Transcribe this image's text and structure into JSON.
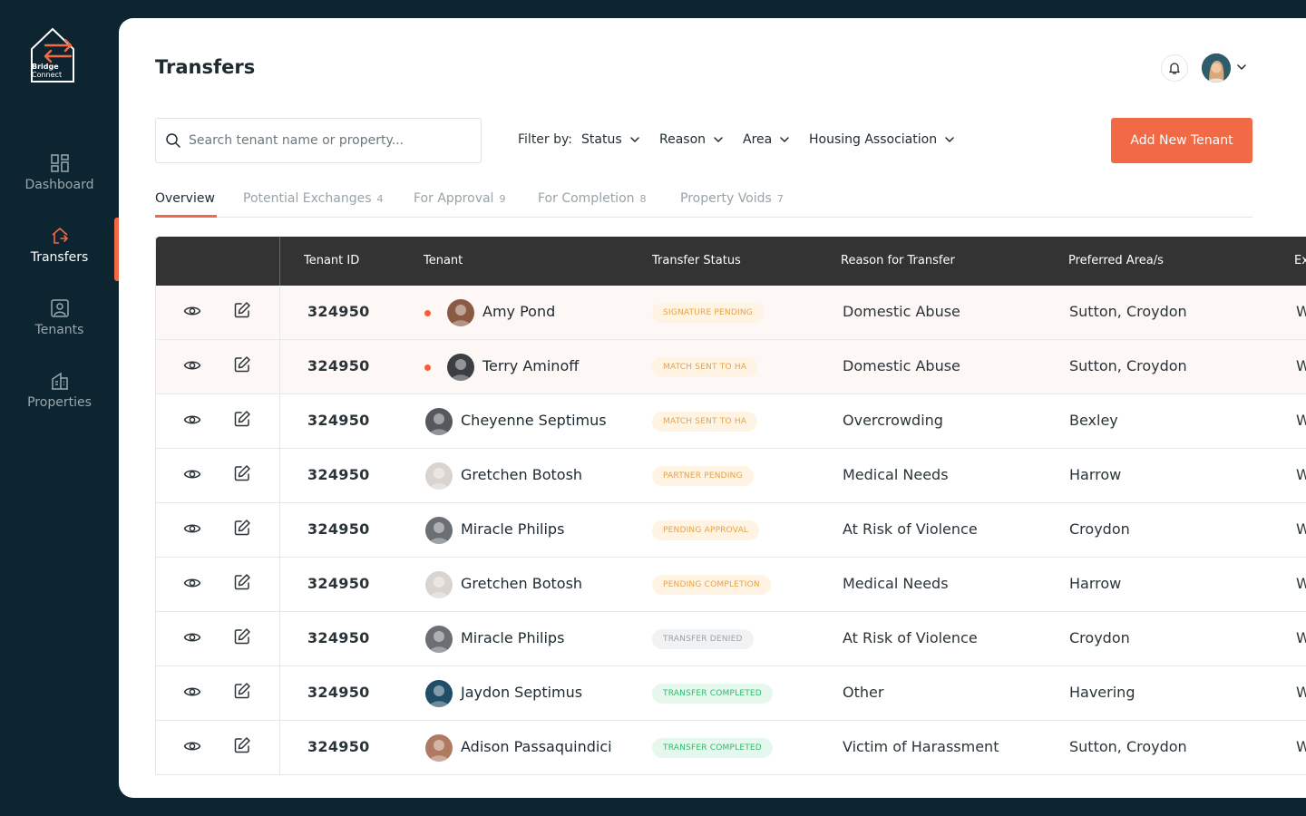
{
  "brand": {
    "line1": "Bridge",
    "line2": "Connect",
    "accent": "#f26a45"
  },
  "sidebar": {
    "items": [
      {
        "label": "Dashboard",
        "icon": "dashboard-icon",
        "active": false
      },
      {
        "label": "Transfers",
        "icon": "transfer-home-icon",
        "active": true
      },
      {
        "label": "Tenants",
        "icon": "user-badge-icon",
        "active": false
      },
      {
        "label": "Properties",
        "icon": "building-icon",
        "active": false
      }
    ]
  },
  "header": {
    "title": "Transfers"
  },
  "search": {
    "placeholder": "Search tenant name or property..."
  },
  "filters": {
    "label": "Filter by:",
    "items": [
      "Status",
      "Reason",
      "Area",
      "Housing Association"
    ]
  },
  "add_button": "Add New Tenant",
  "tabs": [
    {
      "label": "Overview",
      "count": ""
    },
    {
      "label": "Potential Exchanges",
      "count": "4"
    },
    {
      "label": "For Approval",
      "count": "9"
    },
    {
      "label": "For Completion",
      "count": "8"
    },
    {
      "label": "Property Voids",
      "count": "7"
    }
  ],
  "table": {
    "columns": [
      "Tenant ID",
      "Tenant",
      "Transfer Status",
      "Reason for Transfer",
      "Preferred Area/s",
      "Ex"
    ],
    "rows": [
      {
        "id": "324950",
        "name": "Amy Pond",
        "status": "SIGNATURE PENDING",
        "status_kind": "amber",
        "reason": "Domestic Abuse",
        "area": "Sutton, Croydon",
        "extra": "W",
        "flag": true,
        "avatar": "#8a5a44"
      },
      {
        "id": "324950",
        "name": "Terry Aminoff",
        "status": "MATCH SENT TO HA",
        "status_kind": "amber",
        "reason": "Domestic Abuse",
        "area": "Sutton, Croydon",
        "extra": "W",
        "flag": true,
        "avatar": "#3b3f44"
      },
      {
        "id": "324950",
        "name": "Cheyenne Septimus",
        "status": "MATCH SENT TO HA",
        "status_kind": "amber",
        "reason": "Overcrowding",
        "area": "Bexley",
        "extra": "W",
        "flag": false,
        "avatar": "#55585c"
      },
      {
        "id": "324950",
        "name": "Gretchen Botosh",
        "status": "PARTNER PENDING",
        "status_kind": "amber",
        "reason": "Medical Needs",
        "area": "Harrow",
        "extra": "W",
        "flag": false,
        "avatar": "#d9d4d0"
      },
      {
        "id": "324950",
        "name": "Miracle Philips",
        "status": "PENDING APPROVAL",
        "status_kind": "amber",
        "reason": "At Risk of Violence",
        "area": "Croydon",
        "extra": "W",
        "flag": false,
        "avatar": "#6b6f73"
      },
      {
        "id": "324950",
        "name": "Gretchen Botosh",
        "status": "PENDING COMPLETION",
        "status_kind": "amber",
        "reason": "Medical Needs",
        "area": "Harrow",
        "extra": "W",
        "flag": false,
        "avatar": "#d9d4d0"
      },
      {
        "id": "324950",
        "name": "Miracle Philips",
        "status": "TRANSFER DENIED",
        "status_kind": "grey",
        "reason": "At Risk of Violence",
        "area": "Croydon",
        "extra": "W",
        "flag": false,
        "avatar": "#6b6f73"
      },
      {
        "id": "324950",
        "name": "Jaydon Septimus",
        "status": "TRANSFER COMPLETED",
        "status_kind": "green",
        "reason": "Other",
        "area": "Havering",
        "extra": "W",
        "flag": false,
        "avatar": "#1f4e66"
      },
      {
        "id": "324950",
        "name": "Adison Passaquindici",
        "status": "TRANSFER COMPLETED",
        "status_kind": "green",
        "reason": "Victim of Harassment",
        "area": "Sutton, Croydon",
        "extra": "W",
        "flag": false,
        "avatar": "#b07a62"
      }
    ]
  }
}
